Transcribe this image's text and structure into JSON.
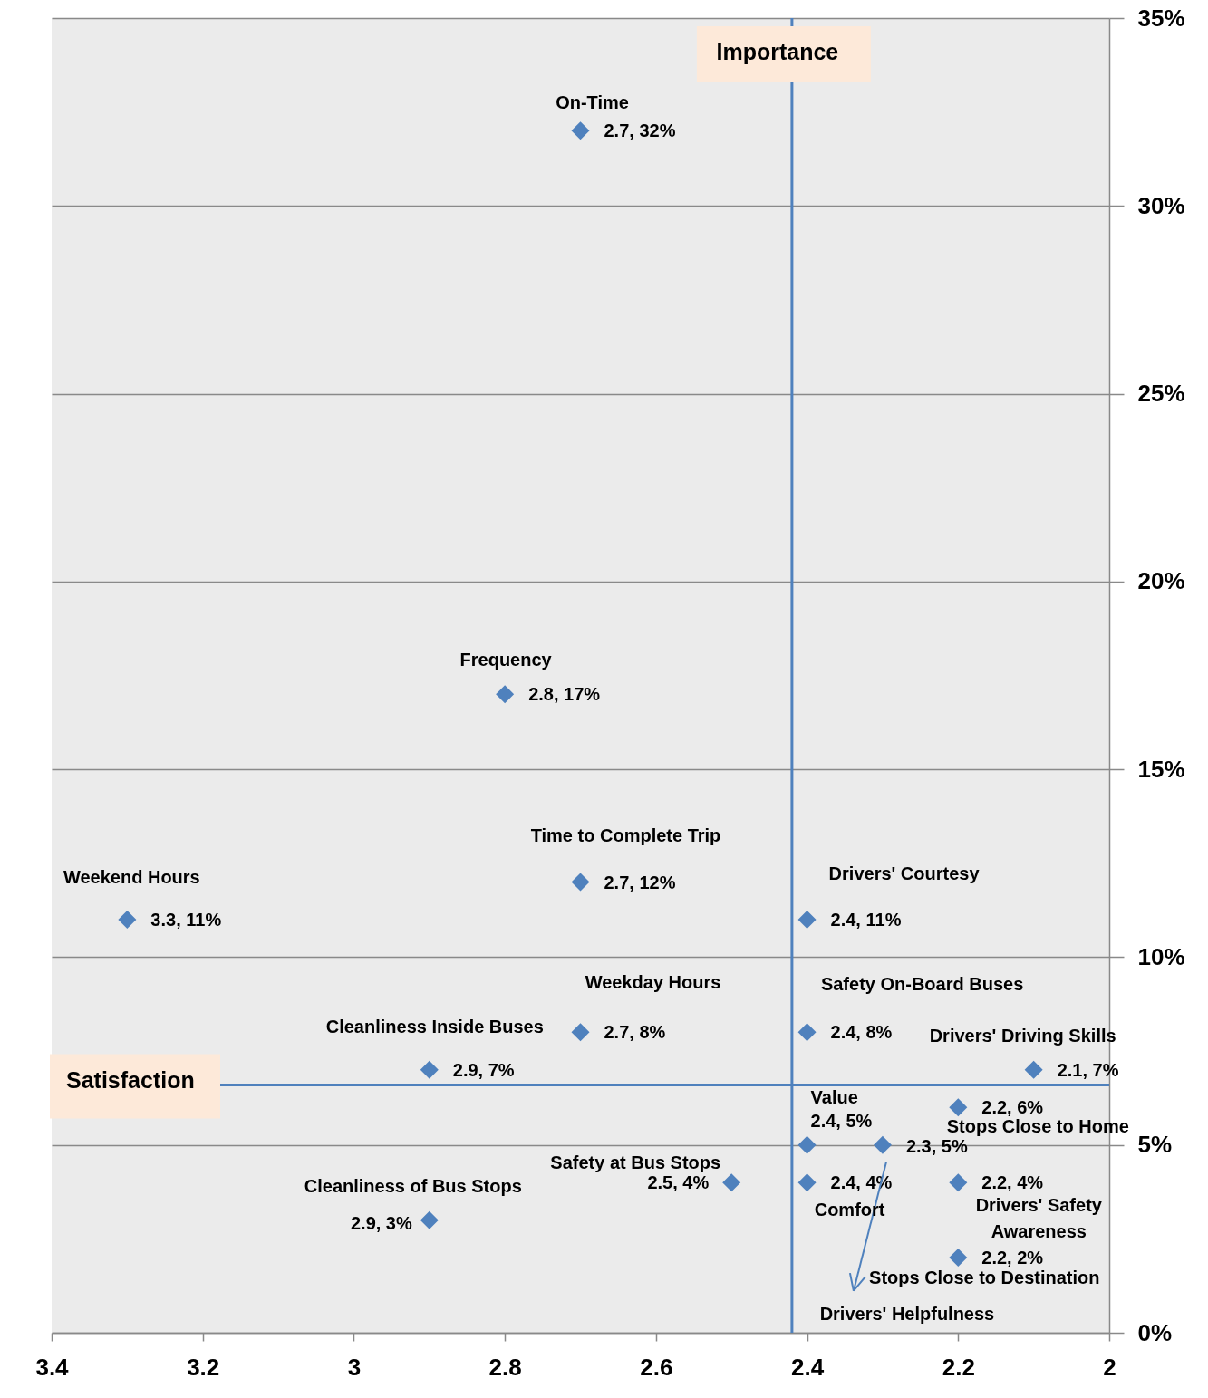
{
  "chart_data": {
    "type": "scatter",
    "color": "#4f81bd",
    "marker": "diamond",
    "x": [
      2.7,
      2.8,
      2.7,
      3.3,
      2.4,
      2.7,
      2.9,
      2.4,
      2.1,
      2.4,
      2.3,
      2.2,
      2.4,
      2.2,
      2.2,
      2.5,
      2.9
    ],
    "values": [
      32,
      17,
      12,
      11,
      11,
      8,
      7,
      8,
      7,
      5,
      5,
      6,
      4,
      4,
      2,
      4,
      3
    ],
    "value_labels": [
      "2.7, 32%",
      "2.8, 17%",
      "2.7, 12%",
      "3.3, 11%",
      "2.4, 11%",
      "2.7, 8%",
      "2.9, 7%",
      "2.4, 8%",
      "2.1, 7%",
      "2.4, 5%",
      "2.3, 5%",
      "2.2, 6%",
      "2.4, 4%",
      "2.2, 4%",
      "2.2, 2%",
      "2.5, 4%",
      "2.9, 3%"
    ],
    "annotations": [
      {
        "text": "On-Time",
        "x": 2.7,
        "y": 32
      },
      {
        "text": "Frequency",
        "x": 2.8,
        "y": 17
      },
      {
        "text": "Time to Complete Trip",
        "x": 2.7,
        "y": 12
      },
      {
        "text": "Weekend Hours",
        "x": 3.3,
        "y": 11
      },
      {
        "text": "Drivers' Courtesy",
        "x": 2.4,
        "y": 11
      },
      {
        "text": "Weekday Hours",
        "x": 2.7,
        "y": 8
      },
      {
        "text": "Cleanliness Inside Buses",
        "x": 2.9,
        "y": 7
      },
      {
        "text": "Safety On-Board Buses",
        "x": 2.4,
        "y": 8
      },
      {
        "text": "Drivers' Driving Skills",
        "x": 2.1,
        "y": 7
      },
      {
        "text": "Value",
        "x": 2.4,
        "y": 5
      },
      "Drivers' Helpfulness",
      {
        "text": "Stops Close to Home",
        "x": 2.2,
        "y": 6
      },
      {
        "text": "Comfort",
        "x": 2.4,
        "y": 4
      },
      {
        "text": "Drivers' Safety Awareness",
        "x": 2.2,
        "y": 4
      },
      {
        "text": "Stops Close to Destination",
        "x": 2.2,
        "y": 2
      },
      {
        "text": "Safety at Bus Stops",
        "x": 2.5,
        "y": 4
      },
      {
        "text": "Cleanliness of Bus Stops",
        "x": 2.9,
        "y": 3
      }
    ],
    "xlim": [
      3.4,
      2
    ],
    "xticks": [
      3.4,
      3.2,
      3,
      2.8,
      2.6,
      2.4,
      2.2,
      2
    ],
    "ylim": [
      0,
      35
    ],
    "yticks": [
      {
        "value": 0,
        "label": "0%"
      },
      {
        "value": 5,
        "label": "5%"
      },
      {
        "value": 10,
        "label": "10%"
      },
      {
        "value": 15,
        "label": "15%"
      },
      {
        "value": 20,
        "label": "20%"
      },
      {
        "value": 25,
        "label": "25%"
      },
      {
        "value": 30,
        "label": "30%"
      },
      {
        "value": 35,
        "label": "35%"
      }
    ],
    "grid": "y",
    "ref_lines": [
      {
        "axis": "x",
        "value": 2.42,
        "label": "Importance",
        "color": "#4f81bd"
      },
      {
        "axis": "y",
        "value": 6.6,
        "label": "Satisfaction",
        "color": "#4f81bd"
      }
    ]
  }
}
